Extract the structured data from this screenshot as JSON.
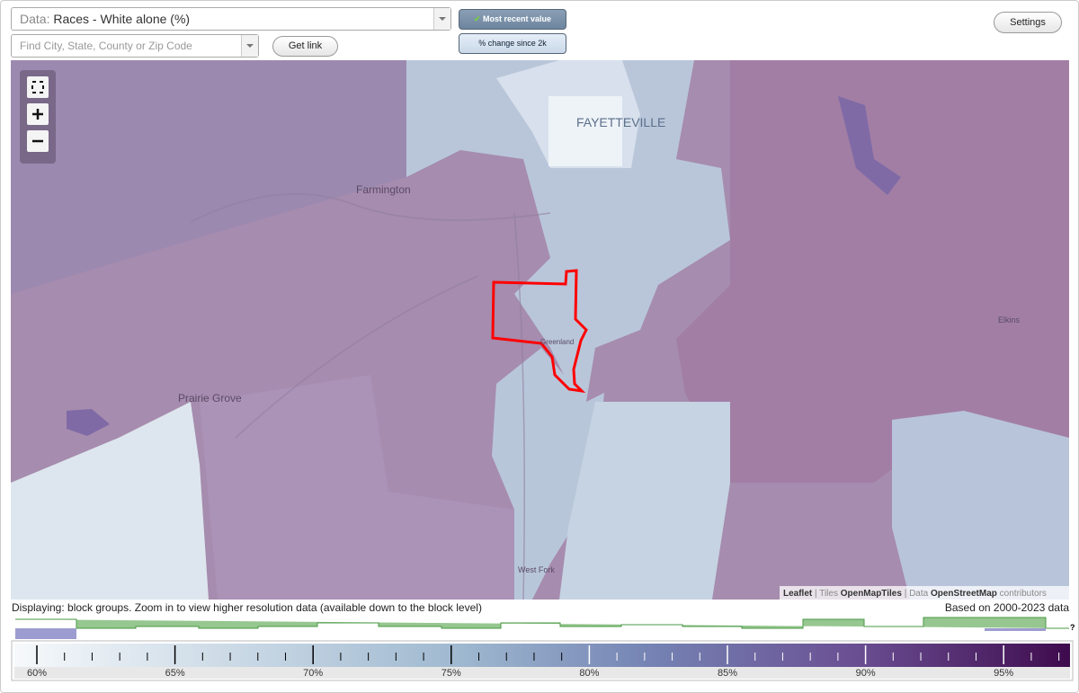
{
  "controls": {
    "data_label": "Data:",
    "data_value": "Races - White alone (%)",
    "search_placeholder": "Find City, State, County or Zip Code",
    "get_link": "Get link",
    "most_recent": "Most recent value",
    "change": "% change since 2k",
    "settings": "Settings"
  },
  "map": {
    "labels": [
      "FAYETTEVILLE",
      "Farmington",
      "Prairie Grove",
      "Greenland",
      "Elkins",
      "West Fork"
    ],
    "attribution": {
      "leaflet": "Leaflet",
      "tiles": "Tiles",
      "tiles_source": "OpenMapTiles",
      "data": "Data",
      "data_source": "OpenStreetMap",
      "contributors": "contributors"
    }
  },
  "status": {
    "displaying": "Displaying: block groups. Zoom in to view higher resolution data (available down to the block level)",
    "based_on": "Based on 2000-2023 data",
    "help": "?"
  },
  "legend": {
    "labels": [
      "60%",
      "65%",
      "70%",
      "75%",
      "80%",
      "85%",
      "90%",
      "95%"
    ]
  }
}
